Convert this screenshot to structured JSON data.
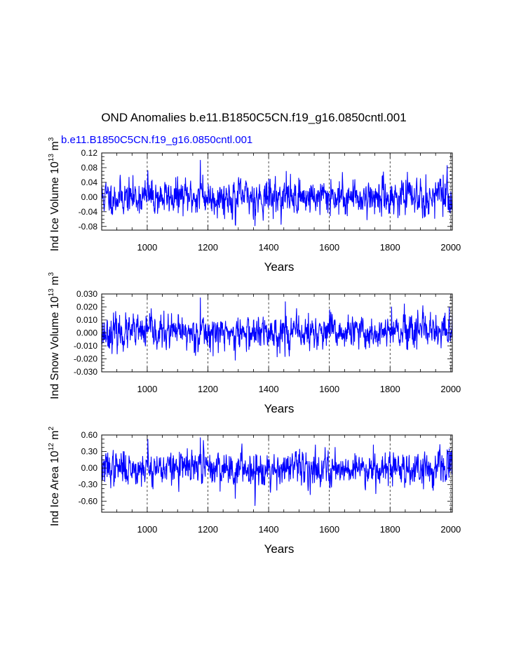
{
  "figure": {
    "title": "OND Anomalies b.e11.B1850C5CN.f19_g16.0850cntl.001",
    "legend_label": "b.e11.B1850C5CN.f19_g16.0850cntl.001",
    "line_color": "#0000ff"
  },
  "chart_data": [
    {
      "type": "line",
      "ylabel_main": "Ind Ice Volume 10",
      "ylabel_exp": "13",
      "ylabel_unit": " m",
      "ylabel_unit_exp": "3",
      "xlabel": "Years",
      "xlim": [
        850,
        2005
      ],
      "ylim": [
        -0.09,
        0.12
      ],
      "yticks": [
        -0.08,
        -0.04,
        0.0,
        0.04,
        0.08,
        0.12
      ],
      "ytick_labels": [
        "-0.08",
        "-0.04",
        "0.00",
        "0.04",
        "0.08",
        "0.12"
      ],
      "xticks": [
        1000,
        1200,
        1400,
        1600,
        1800,
        2000
      ],
      "xtick_labels": [
        "1000",
        "1200",
        "1400",
        "1600",
        "1800",
        "2000"
      ],
      "grid": "vertical dashed",
      "series": [
        {
          "name": "b.e11.B1850C5CN.f19_g16.0850cntl.001",
          "start_year": 850,
          "end_year": 2005,
          "amplitude": 0.022,
          "seed": 11,
          "spikes": [
            [
              1002,
              0.072
            ],
            [
              1175,
              0.1
            ],
            [
              1183,
              0.06
            ],
            [
              1290,
              -0.075
            ],
            [
              1355,
              -0.078
            ],
            [
              1458,
              0.07
            ],
            [
              1605,
              0.048
            ],
            [
              1900,
              0.05
            ],
            [
              1975,
              0.06
            ]
          ]
        }
      ]
    },
    {
      "type": "line",
      "ylabel_main": "Ind Snow Volume 10",
      "ylabel_exp": "13",
      "ylabel_unit": " m",
      "ylabel_unit_exp": "3",
      "xlabel": "Years",
      "xlim": [
        850,
        2005
      ],
      "ylim": [
        -0.03,
        0.03
      ],
      "yticks": [
        -0.03,
        -0.02,
        -0.01,
        0.0,
        0.01,
        0.02,
        0.03
      ],
      "ytick_labels": [
        "-0.030",
        "-0.020",
        "-0.010",
        "0.000",
        "0.010",
        "0.020",
        "0.030"
      ],
      "xticks": [
        1000,
        1200,
        1400,
        1600,
        1800,
        2000
      ],
      "xtick_labels": [
        "1000",
        "1200",
        "1400",
        "1600",
        "1800",
        "2000"
      ],
      "grid": "vertical dashed",
      "series": [
        {
          "name": "b.e11.B1850C5CN.f19_g16.0850cntl.001",
          "start_year": 850,
          "end_year": 2005,
          "amplitude": 0.006,
          "seed": 23,
          "spikes": [
            [
              1008,
              0.015
            ],
            [
              1175,
              0.027
            ],
            [
              1290,
              -0.021
            ],
            [
              1455,
              0.024
            ],
            [
              1605,
              0.016
            ],
            [
              1805,
              0.02
            ],
            [
              1995,
              0.02
            ]
          ]
        }
      ]
    },
    {
      "type": "line",
      "ylabel_main": "Ind Ice Area 10",
      "ylabel_exp": "12",
      "ylabel_unit": " m",
      "ylabel_unit_exp": "2",
      "xlabel": "Years",
      "xlim": [
        850,
        2005
      ],
      "ylim": [
        -0.8,
        0.6
      ],
      "yticks": [
        -0.6,
        -0.3,
        0.0,
        0.3,
        0.6
      ],
      "ytick_labels": [
        "-0.60",
        "-0.30",
        "0.00",
        "0.30",
        "0.60"
      ],
      "xticks": [
        1000,
        1200,
        1400,
        1600,
        1800,
        2000
      ],
      "xtick_labels": [
        "1000",
        "1200",
        "1400",
        "1600",
        "1800",
        "2000"
      ],
      "grid": "vertical dashed",
      "series": [
        {
          "name": "b.e11.B1850C5CN.f19_g16.0850cntl.001",
          "start_year": 850,
          "end_year": 2005,
          "amplitude": 0.14,
          "seed": 37,
          "spikes": [
            [
              1002,
              0.52
            ],
            [
              1175,
              0.55
            ],
            [
              1185,
              0.5
            ],
            [
              1290,
              -0.55
            ],
            [
              1355,
              -0.68
            ],
            [
              1405,
              -0.35
            ],
            [
              1745,
              0.42
            ],
            [
              1910,
              -0.38
            ],
            [
              1995,
              0.35
            ]
          ]
        }
      ]
    }
  ]
}
